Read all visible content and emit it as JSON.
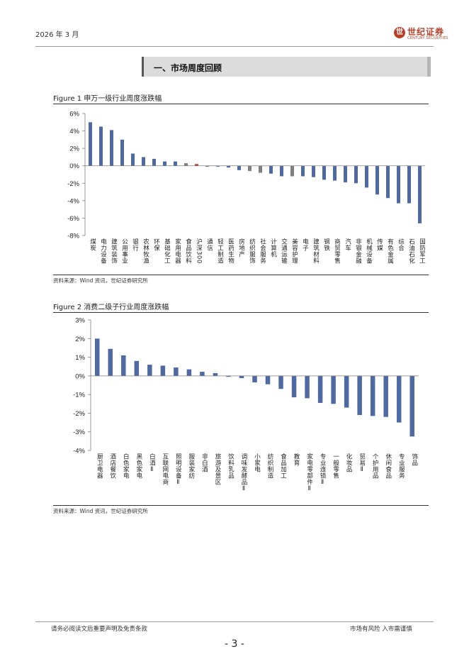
{
  "header": {
    "date": "2026 年 3 月",
    "logo_mark": "世",
    "logo_text": "世纪证券",
    "logo_en": "CENTURY SECURITIES"
  },
  "section": {
    "title": "一、市场周度回顾"
  },
  "colors": {
    "bar": "#4f6aa3",
    "benchmark_bar": "#7f7f7f",
    "highlight_bar": "#c0392b",
    "axis": "#7f7f7f"
  },
  "figures": [
    {
      "title": "Figure 1  申万一级行业周度涨跌幅",
      "source": "资料来源：Wind 资讯，世纪证券研究所"
    },
    {
      "title": "Figure 2  消费二级子行业周度涨跌幅",
      "source": "资料来源：Wind 资讯，世纪证券研究所"
    }
  ],
  "chart_data": [
    {
      "type": "bar",
      "title": "申万一级行业周度涨跌幅",
      "ylim": [
        -8,
        6
      ],
      "yticks": [
        6,
        4,
        2,
        0,
        -2,
        -4,
        -6,
        -8
      ],
      "ytick_labels": [
        "6%",
        "4%",
        "2%",
        "0%",
        "-2%",
        "-4%",
        "-6%",
        "-8%"
      ],
      "categories": [
        "煤炭",
        "电力设备",
        "建筑装饰",
        "公用事业",
        "银行",
        "农林牧渔",
        "环保",
        "基础化工",
        "家用电器",
        "食品饮料",
        "沪深300",
        "通信",
        "轻工制造",
        "医药生物",
        "房地产",
        "纺织服饰",
        "社会服务",
        "计算机",
        "交通运输",
        "美容护理",
        "电子",
        "建筑材料",
        "钢铁",
        "商贸零售",
        "汽车",
        "非银金融",
        "机械设备",
        "传媒",
        "有色金属",
        "综合",
        "石油石化",
        "国防军工"
      ],
      "values": [
        5.0,
        4.5,
        4.1,
        3.0,
        1.4,
        1.0,
        0.8,
        0.5,
        0.5,
        0.3,
        0.2,
        -0.1,
        -0.1,
        -0.2,
        -0.5,
        -0.6,
        -0.8,
        -0.9,
        -1.2,
        -1.2,
        -1.2,
        -1.3,
        -1.6,
        -1.7,
        -1.9,
        -2.0,
        -2.5,
        -3.3,
        -3.7,
        -4.3,
        -4.3,
        -6.6
      ],
      "special": {
        "benchmark": [
          9,
          15,
          16,
          19
        ],
        "highlight": [
          10
        ]
      }
    },
    {
      "type": "bar",
      "title": "消费二级子行业周度涨跌幅",
      "ylim": [
        -4,
        3
      ],
      "yticks": [
        3,
        2,
        1,
        0,
        -1,
        -2,
        -3,
        -4
      ],
      "ytick_labels": [
        "3%",
        "2%",
        "1%",
        "0%",
        "-1%",
        "-2%",
        "-3%",
        "-4%"
      ],
      "categories": [
        "厨卫电器",
        "酒店餐饮",
        "白色家电",
        "黑色家电",
        "白酒Ⅱ",
        "互联网电商",
        "照明设备Ⅱ",
        "服装家纺",
        "非白酒",
        "旅游及景区",
        "饮料乳品",
        "调味发酵品Ⅱ",
        "小家电",
        "纺织制造",
        "食品加工",
        "教育",
        "家电零部件Ⅱ",
        "专业连锁Ⅱ",
        "一般零售",
        "化妆品",
        "贸易Ⅱ",
        "个护用品",
        "休闲食品",
        "专业服务",
        "饰品"
      ],
      "values": [
        2.0,
        1.45,
        1.1,
        0.8,
        0.6,
        0.55,
        0.45,
        0.35,
        0.22,
        0.15,
        -0.05,
        -0.12,
        -0.35,
        -0.45,
        -0.7,
        -1.15,
        -1.2,
        -1.45,
        -1.5,
        -1.7,
        -2.1,
        -2.15,
        -2.2,
        -2.5,
        -3.25
      ]
    }
  ],
  "footer": {
    "left": "请务必阅读文后重要声明及免责条款",
    "right": "市场有风险  入市需谨慎",
    "page": "- 3 -"
  }
}
